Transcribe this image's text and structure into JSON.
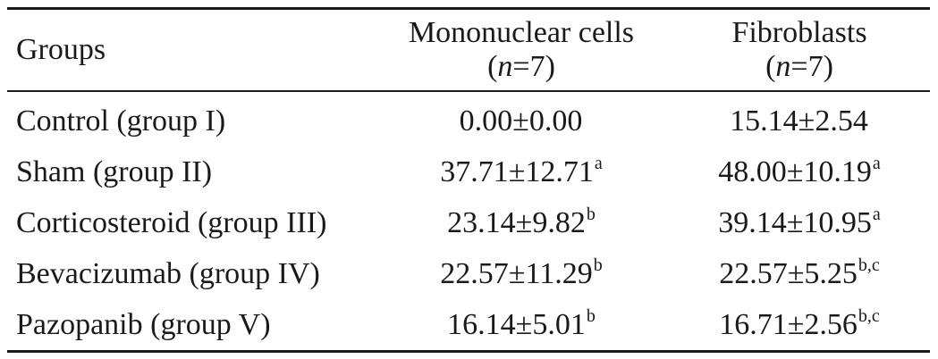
{
  "table": {
    "headers": {
      "groups": "Groups",
      "mononuclear": "Mononuclear cells",
      "mononuclear_n_prefix": "(",
      "mononuclear_n_var": "n",
      "mononuclear_n_suffix": "=7)",
      "fibroblasts": "Fibroblasts",
      "fibroblasts_n_prefix": "(",
      "fibroblasts_n_var": "n",
      "fibroblasts_n_suffix": "=7)"
    },
    "rows": [
      {
        "group": "Control (group I)",
        "mono": "0.00±0.00",
        "mono_sup": "",
        "fib": "15.14±2.54",
        "fib_sup": ""
      },
      {
        "group": "Sham (group II)",
        "mono": "37.71±12.71",
        "mono_sup": "a",
        "fib": "48.00±10.19",
        "fib_sup": "a"
      },
      {
        "group": "Corticosteroid (group III)",
        "mono": "23.14±9.82",
        "mono_sup": "b",
        "fib": "39.14±10.95",
        "fib_sup": "a"
      },
      {
        "group": "Bevacizumab (group IV)",
        "mono": "22.57±11.29",
        "mono_sup": "b",
        "fib": "22.57±5.25",
        "fib_sup": "b,c"
      },
      {
        "group": "Pazopanib (group V)",
        "mono": "16.14±5.01",
        "mono_sup": "b",
        "fib": "16.71±2.56",
        "fib_sup": "b,c"
      }
    ]
  }
}
